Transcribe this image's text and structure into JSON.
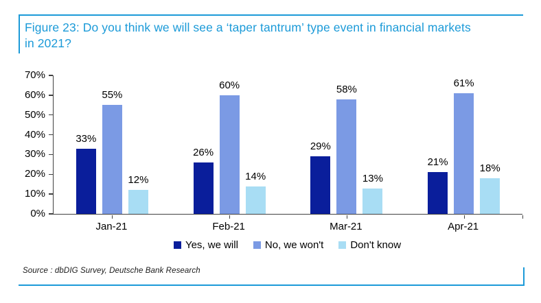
{
  "figure": {
    "title": "Figure 23: Do you think we will see a ‘taper tantrum’ type event in financial markets in 2021?",
    "source": "Source : dbDIG Survey, Deutsche Bank Research",
    "accent_color": "#1b9ad8"
  },
  "chart_data": {
    "type": "bar",
    "title": "Do you think we will see a ‘taper tantrum’ type event in financial markets in 2021?",
    "categories": [
      "Jan-21",
      "Feb-21",
      "Mar-21",
      "Apr-21"
    ],
    "series": [
      {
        "name": "Yes, we will",
        "color": "#0a1e9b",
        "values": [
          33,
          26,
          29,
          21
        ]
      },
      {
        "name": "No, we won't",
        "color": "#7b9ae4",
        "values": [
          55,
          60,
          58,
          61
        ]
      },
      {
        "name": "Don't know",
        "color": "#a8ddf4",
        "values": [
          12,
          14,
          13,
          18
        ]
      }
    ],
    "value_suffix": "%",
    "xlabel": "",
    "ylabel": "",
    "ylim": [
      0,
      70
    ],
    "ytick_step": 10,
    "grid": false,
    "legend_position": "bottom",
    "data_labels": true
  }
}
